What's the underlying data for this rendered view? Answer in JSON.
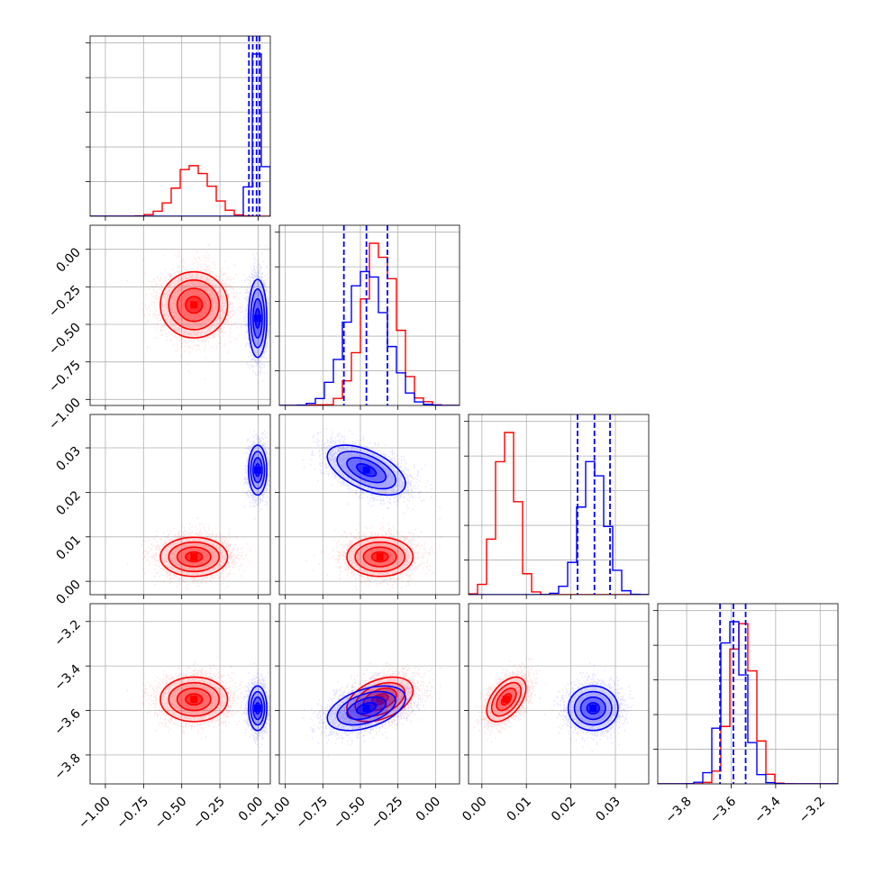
{
  "chart_data": {
    "type": "scatter",
    "grid": true,
    "variables": [
      {
        "range": [
          -1.1,
          0.08
        ],
        "ticks": [
          "−1.00",
          "−0.75",
          "−0.50",
          "−0.25",
          "0.00"
        ],
        "tick_values": [
          -1.0,
          -0.75,
          -0.5,
          -0.25,
          0.0
        ]
      },
      {
        "range": [
          -1.04,
          0.16
        ],
        "ticks": [
          "−1.00",
          "−0.75",
          "−0.50",
          "−0.25",
          "0.00"
        ],
        "tick_values": [
          -1.0,
          -0.75,
          -0.5,
          -0.25,
          0.0
        ]
      },
      {
        "range": [
          -0.003,
          0.0375
        ],
        "ticks": [
          "0.00",
          "0.01",
          "0.02",
          "0.03"
        ],
        "tick_values": [
          0.0,
          0.01,
          0.02,
          0.03
        ]
      },
      {
        "range": [
          -3.93,
          -3.12
        ],
        "ticks": [
          "−3.8",
          "−3.6",
          "−3.4",
          "−3.2"
        ],
        "tick_values": [
          -3.8,
          -3.6,
          -3.4,
          -3.2
        ]
      }
    ],
    "series": [
      {
        "color": "#ff0000",
        "means": [
          -0.42,
          -0.37,
          0.0055,
          -3.55
        ],
        "sds": [
          0.11,
          0.11,
          0.0022,
          0.05
        ],
        "correlations": [
          [
            0,
            1,
            0.0
          ],
          [
            0,
            2,
            0.0
          ],
          [
            0,
            3,
            0.0
          ],
          [
            1,
            2,
            0.0
          ],
          [
            1,
            3,
            0.4
          ],
          [
            2,
            3,
            0.5
          ]
        ],
        "quantile_lines": []
      },
      {
        "color": "#0000ff",
        "means": [
          -0.003,
          -0.46,
          0.025,
          -3.59
        ],
        "sds": [
          0.03,
          0.13,
          0.0028,
          0.05
        ],
        "correlations": [
          [
            0,
            1,
            0.0
          ],
          [
            0,
            2,
            0.0
          ],
          [
            0,
            3,
            0.0
          ],
          [
            1,
            2,
            -0.55
          ],
          [
            1,
            3,
            0.45
          ],
          [
            2,
            3,
            0.0
          ]
        ],
        "quantile_lines": [
          [
            -0.06,
            -0.035,
            -0.01,
            0.01
          ],
          [
            -0.61,
            -0.46,
            -0.32
          ],
          [
            0.0215,
            0.0253,
            0.0288
          ],
          [
            -3.65,
            -3.59,
            -3.535
          ]
        ]
      }
    ],
    "hist_y_tick_count": 5
  }
}
